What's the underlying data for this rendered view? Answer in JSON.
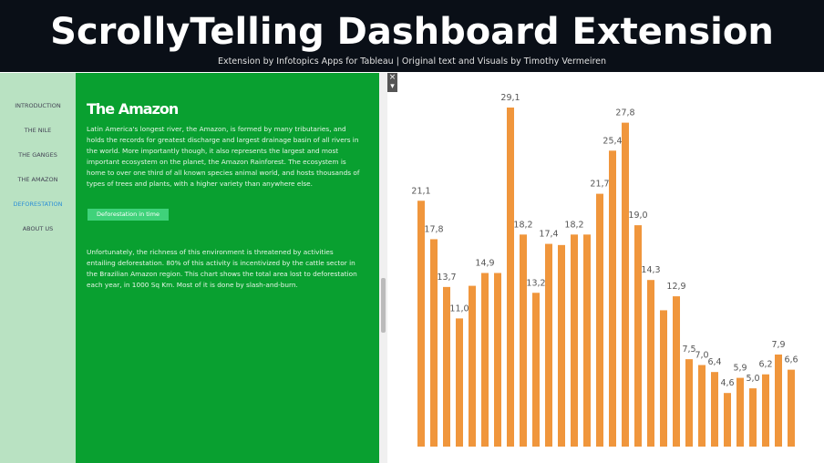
{
  "header": {
    "title": "ScrollyTelling Dashboard Extension",
    "subtitle": "Extension by Infotopics Apps for Tableau | Original text and Visuals by Timothy Vermeiren"
  },
  "nav": [
    "INTRODUCTION",
    "THE NILE",
    "THE GANGES",
    "THE AMAZON",
    "DEFORESTATION",
    "ABOUT US"
  ],
  "panel": {
    "heading": "The Amazon",
    "paragraph_1": "Latin America's longest river, the Amazon, is formed by many tributaries, and holds the records for greatest discharge and largest drainage basin of all rivers in the world. More importantly though, it also represents the largest and most important ecosystem on the planet, the Amazon Rainforest. The ecosystem is home to over one third of all known species animal world, and hosts thousands of types of trees and plants, with a higher variety than anywhere else.",
    "button": "Deforestation in time",
    "paragraph_2": "Unfortunately, the richness of this environment is threatened by activities entailing deforestation. 80% of this activity is incentivized by the cattle sector in the Brazilian Amazon region. This chart shows the total area lost to deforestation each year, in 1000 Sq Km. Most of it is done by slash-and-burn."
  },
  "chart_data": {
    "type": "bar",
    "color": "#f0963c",
    "values": [
      21.1,
      17.8,
      13.7,
      11.0,
      13.8,
      14.9,
      14.9,
      29.1,
      18.2,
      13.2,
      17.4,
      17.3,
      18.2,
      18.2,
      21.7,
      25.4,
      27.8,
      19.0,
      14.3,
      11.7,
      12.9,
      7.5,
      7.0,
      6.4,
      4.6,
      5.9,
      5.0,
      6.2,
      7.9,
      6.6
    ],
    "value_labels": [
      "21,1",
      "17,8",
      "13,7",
      "11,0",
      null,
      "14,9",
      null,
      "29,1",
      "18,2",
      "13,2",
      "17,4",
      null,
      "18,2",
      null,
      "21,7",
      "25,4",
      "27,8",
      "19,0",
      "14,3",
      null,
      "12,9",
      "7,5",
      "7,0",
      "6,4",
      "4,6",
      "5,9",
      "5,0",
      "6,2",
      "7,9",
      "6,6"
    ]
  }
}
